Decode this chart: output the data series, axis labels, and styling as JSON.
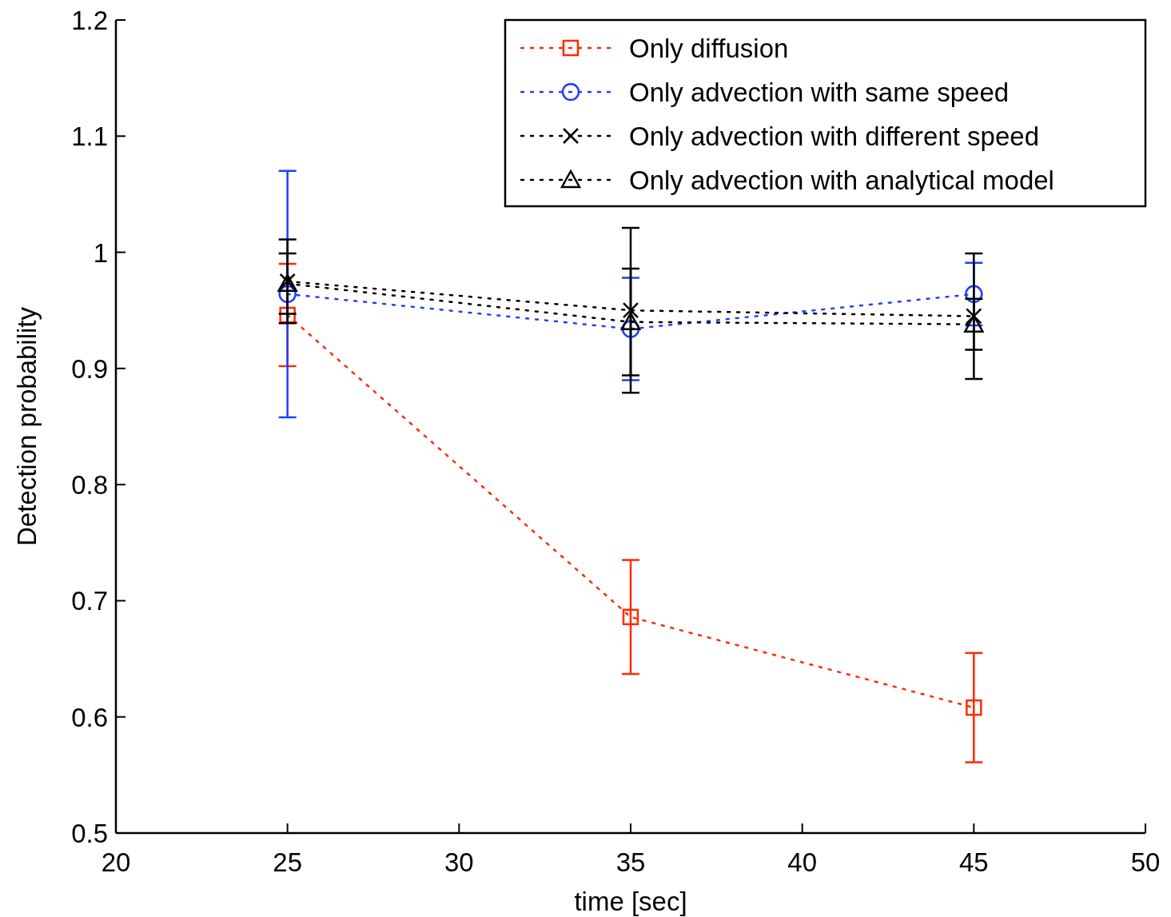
{
  "chart_data": {
    "type": "line",
    "xlabel": "time [sec]",
    "ylabel": "Detection probability",
    "x": [
      25,
      35,
      45
    ],
    "xlim": [
      20,
      50
    ],
    "xticks": [
      20,
      25,
      30,
      35,
      40,
      45,
      50
    ],
    "ylim": [
      0.5,
      1.2
    ],
    "yticks": [
      0.5,
      0.6,
      0.7,
      0.8,
      0.9,
      1,
      1.1,
      1.2
    ],
    "grid": false,
    "legend": "top right",
    "line_style": "dotted",
    "series": [
      {
        "name": "Only diffusion",
        "color": "#ff2a00",
        "marker": "square",
        "values": [
          0.946,
          0.686,
          0.608
        ],
        "errors": [
          0.044,
          0.049,
          0.047
        ]
      },
      {
        "name": "Only advection with same speed",
        "color": "#1f3fff",
        "marker": "circle",
        "values": [
          0.964,
          0.934,
          0.964
        ],
        "errors": [
          0.106,
          0.044,
          0.027
        ]
      },
      {
        "name": "Only advection with different speed",
        "color": "#000000",
        "marker": "cross",
        "values": [
          0.975,
          0.95,
          0.945
        ],
        "errors": [
          0.036,
          0.071,
          0.054
        ]
      },
      {
        "name": "Only advection with analytical model",
        "color": "#000000",
        "marker": "triangle",
        "values": [
          0.973,
          0.94,
          0.938
        ],
        "errors": [
          0.026,
          0.046,
          0.022
        ]
      }
    ]
  }
}
